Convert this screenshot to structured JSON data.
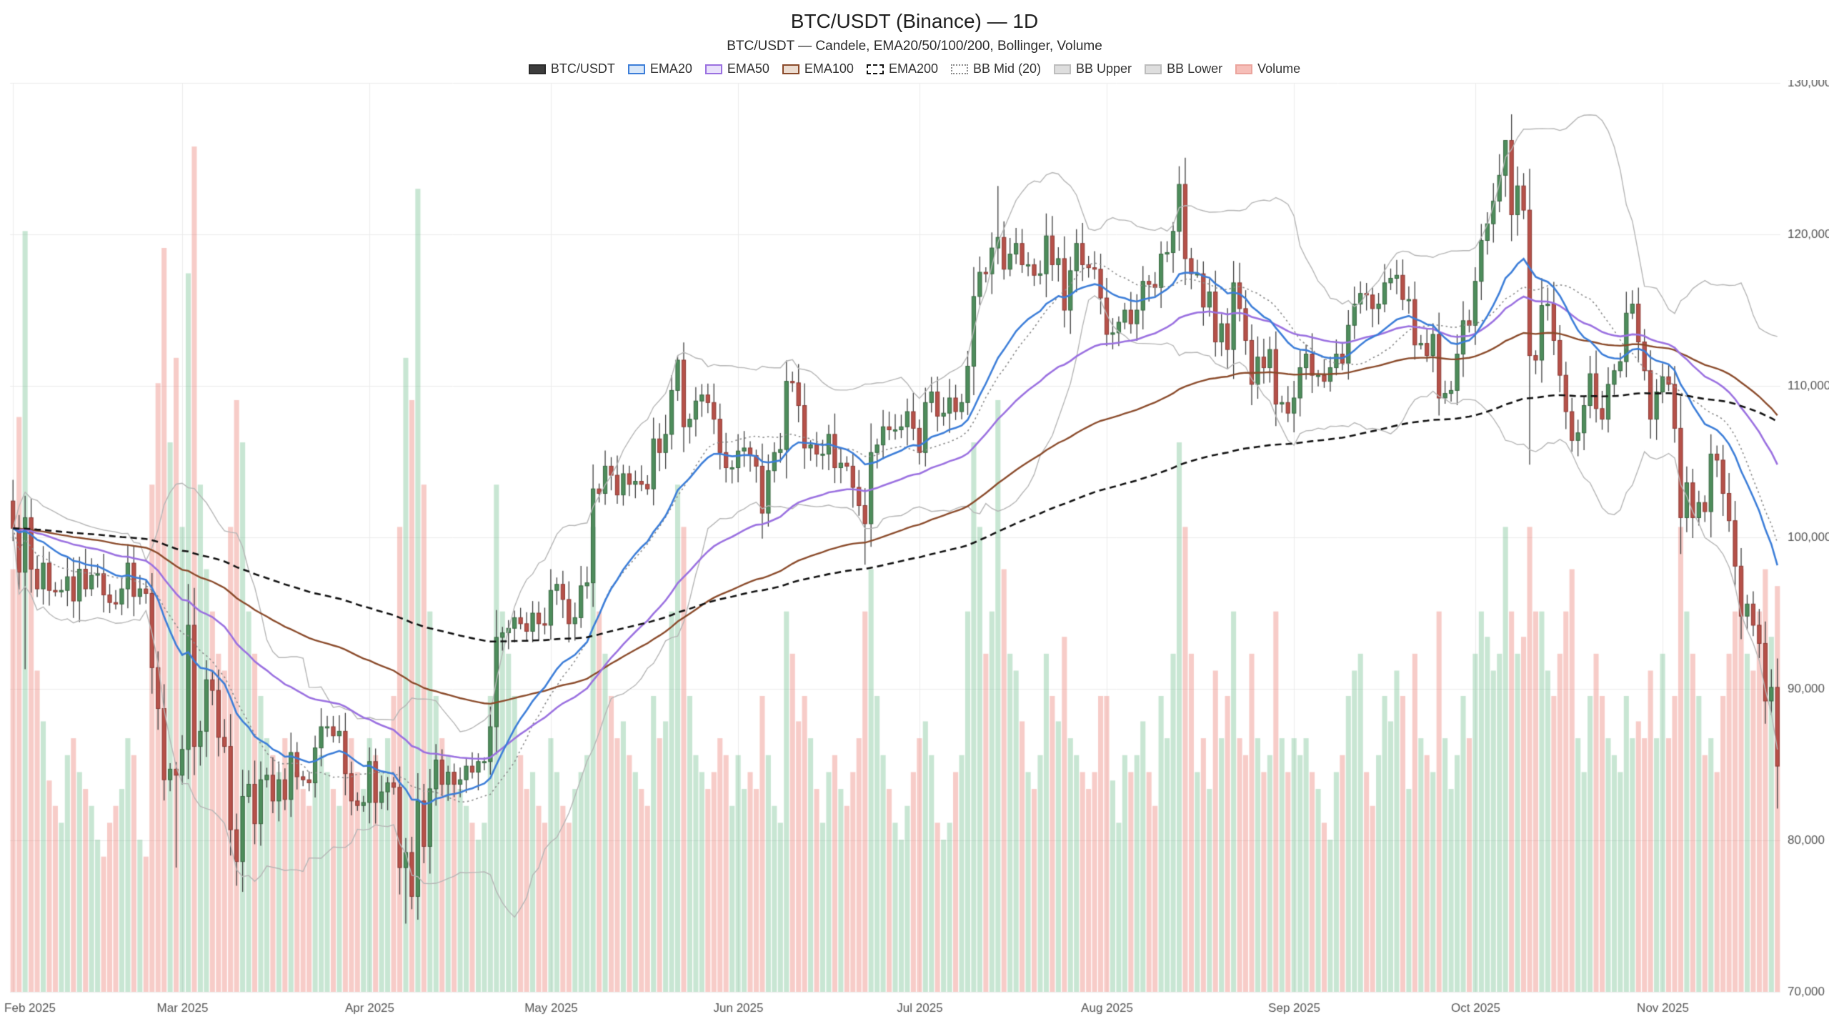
{
  "header": {
    "title": "BTC/USDT (Binance) — 1D",
    "subtitle": "BTC/USDT — Candele, EMA20/50/100/200, Bollinger, Volume"
  },
  "legend": {
    "items": [
      {
        "id": "btc-usdt",
        "label": "BTC/USDT",
        "fill": "#3c3c3c",
        "border": "#2a2a2a",
        "border_style": "solid"
      },
      {
        "id": "ema20",
        "label": "EMA20",
        "fill": "#d8e7f9",
        "border": "#3b7dd8",
        "border_style": "solid"
      },
      {
        "id": "ema50",
        "label": "EMA50",
        "fill": "#e9e1fb",
        "border": "#9a70e0",
        "border_style": "solid"
      },
      {
        "id": "ema100",
        "label": "EMA100",
        "fill": "#ecdcd0",
        "border": "#8a4a2a",
        "border_style": "solid"
      },
      {
        "id": "ema200",
        "label": "EMA200",
        "fill": "#ffffff",
        "border": "#111111",
        "border_style": "dashed"
      },
      {
        "id": "bb-mid",
        "label": "BB Mid (20)",
        "fill": "#ffffff",
        "border": "#8a8a8a",
        "border_style": "dotted"
      },
      {
        "id": "bb-upper",
        "label": "BB Upper",
        "fill": "#dedede",
        "border": "#bdbdbd",
        "border_style": "solid"
      },
      {
        "id": "bb-lower",
        "label": "BB Lower",
        "fill": "#dedede",
        "border": "#bdbdbd",
        "border_style": "solid"
      },
      {
        "id": "volume",
        "label": "Volume",
        "fill": "#f6beb8",
        "border": "#eba49d",
        "border_style": "solid"
      }
    ]
  },
  "style": {
    "background": "#ffffff",
    "grid_color": "#ebebeb",
    "tick_label_color": "#555555",
    "up_color": "#4e8d5c",
    "up_edge": "#36663f",
    "down_color": "#b65149",
    "down_edge": "#8c3a34",
    "wick_color": "#3c3c3c",
    "vol_up": "rgba(110,190,140,0.38)",
    "vol_down": "rgba(235,120,110,0.38)",
    "ema20": "#3b7dd8",
    "ema50": "#9a70e0",
    "ema100": "#8a4a2a",
    "ema200": "#111111",
    "bb_mid": "#8a8a8a",
    "bb_band": "#b5b5b5"
  },
  "chart_data": {
    "type": "candlestick+volume",
    "title": "BTC/USDT (Binance) — 1D",
    "symbol": "BTC/USDT",
    "exchange": "Binance",
    "timeframe": "1D",
    "x_start": "2025-02-01",
    "x_unit": "day",
    "ylim": [
      70000,
      130000
    ],
    "grid": true,
    "legend_position": "top",
    "overlays": [
      {
        "name": "EMA20",
        "period": 20
      },
      {
        "name": "EMA50",
        "period": 50
      },
      {
        "name": "EMA100",
        "period": 100
      },
      {
        "name": "EMA200",
        "period": 200
      },
      {
        "name": "Bollinger",
        "period": 20,
        "stdev": 2
      }
    ],
    "y_ticks": [
      {
        "value": 70000,
        "label": "70,000"
      },
      {
        "value": 80000,
        "label": "80,000"
      },
      {
        "value": 90000,
        "label": "90,000"
      },
      {
        "value": 100000,
        "label": "100,000"
      },
      {
        "value": 110000,
        "label": "110,000"
      },
      {
        "value": 120000,
        "label": "120,000"
      },
      {
        "value": 130000,
        "label": "130,000"
      }
    ],
    "x_ticks": [
      {
        "index": 0,
        "label": "Feb 2025"
      },
      {
        "index": 28,
        "label": "Mar 2025"
      },
      {
        "index": 59,
        "label": "Apr 2025"
      },
      {
        "index": 89,
        "label": "May 2025"
      },
      {
        "index": 120,
        "label": "Jun 2025"
      },
      {
        "index": 150,
        "label": "Jul 2025"
      },
      {
        "index": 181,
        "label": "Aug 2025"
      },
      {
        "index": 212,
        "label": "Sep 2025"
      },
      {
        "index": 242,
        "label": "Oct 2025"
      },
      {
        "index": 273,
        "label": "Nov 2025"
      }
    ],
    "first_open": 102400,
    "closes": [
      100600,
      97700,
      101300,
      97900,
      96600,
      98300,
      96500,
      96400,
      96500,
      97400,
      95800,
      97900,
      96600,
      97500,
      97600,
      96200,
      95700,
      95600,
      96600,
      98300,
      96100,
      96600,
      96300,
      91400,
      88700,
      84000,
      84700,
      84300,
      86000,
      94200,
      86200,
      87200,
      90600,
      89900,
      86800,
      86200,
      80700,
      78600,
      82900,
      83700,
      81100,
      84000,
      84300,
      82600,
      84000,
      82700,
      85800,
      84200,
      84000,
      83800,
      86100,
      87500,
      87500,
      86900,
      87200,
      84400,
      82600,
      82300,
      82500,
      85200,
      82500,
      83200,
      83800,
      83500,
      78200,
      79200,
      76300,
      82600,
      79600,
      83400,
      85300,
      83700,
      84500,
      83700,
      84000,
      84900,
      84500,
      85200,
      85200,
      87500,
      93400,
      93700,
      94000,
      94700,
      94300,
      93800,
      95000,
      94300,
      94200,
      96500,
      96900,
      95900,
      94300,
      94700,
      96800,
      97000,
      103200,
      102900,
      104700,
      104100,
      102800,
      104200,
      103500,
      103700,
      103500,
      103200,
      106500,
      105600,
      106800,
      109700,
      111700,
      107300,
      107800,
      109000,
      109400,
      108900,
      107800,
      105600,
      104600,
      104600,
      105700,
      105900,
      105400,
      104700,
      101600,
      104400,
      105600,
      105800,
      110300,
      110200,
      108700,
      105900,
      106100,
      105500,
      105500,
      106800,
      104600,
      104900,
      104700,
      103300,
      102100,
      100900,
      105600,
      106100,
      107300,
      107100,
      107100,
      107300,
      108300,
      107200,
      105600,
      108900,
      109600,
      108000,
      108200,
      109200,
      108300,
      108900,
      111300,
      115900,
      117500,
      117400,
      119100,
      119800,
      117700,
      118700,
      119400,
      118000,
      118000,
      117300,
      117400,
      119900,
      118000,
      118400,
      115000,
      117600,
      119400,
      118000,
      117800,
      117700,
      115800,
      113400,
      113500,
      114200,
      115000,
      114100,
      115000,
      116900,
      116700,
      116500,
      118700,
      118800,
      120200,
      123300,
      118400,
      117400,
      117400,
      115200,
      116200,
      112900,
      114100,
      112400,
      116800,
      115100,
      113000,
      110100,
      111900,
      111200,
      112400,
      108800,
      108900,
      108200,
      109200,
      111200,
      112100,
      110700,
      110700,
      110300,
      111200,
      112100,
      111500,
      114000,
      115400,
      116100,
      116000,
      115100,
      115400,
      116800,
      117100,
      117300,
      115700,
      115700,
      112700,
      112800,
      112000,
      113400,
      109200,
      109500,
      109700,
      112100,
      114300,
      114000,
      116900,
      119600,
      120700,
      122200,
      123900,
      126200,
      121300,
      123200,
      121600,
      112000,
      111700,
      115300,
      115400,
      113000,
      110700,
      108300,
      106400,
      106900,
      108700,
      110800,
      108500,
      107800,
      110100,
      111000,
      111600,
      114800,
      115400,
      112900,
      111000,
      107800,
      109600,
      110600,
      110100,
      107200,
      101300,
      103600,
      101300,
      102300,
      101700,
      105500,
      105100,
      102900,
      101100,
      98100,
      94800,
      95600,
      94200,
      93000,
      89200,
      90100,
      84900
    ],
    "volumes": [
      50,
      68,
      90,
      55,
      38,
      32,
      25,
      22,
      20,
      28,
      30,
      26,
      24,
      22,
      18,
      16,
      20,
      22,
      24,
      30,
      28,
      18,
      16,
      60,
      72,
      88,
      65,
      75,
      55,
      85,
      100,
      60,
      50,
      45,
      40,
      38,
      55,
      70,
      65,
      45,
      40,
      35,
      30,
      28,
      26,
      30,
      28,
      26,
      24,
      22,
      25,
      28,
      26,
      24,
      22,
      28,
      30,
      26,
      24,
      30,
      28,
      26,
      30,
      35,
      55,
      75,
      70,
      95,
      60,
      45,
      35,
      30,
      28,
      26,
      24,
      22,
      20,
      18,
      20,
      35,
      60,
      45,
      40,
      35,
      28,
      24,
      26,
      22,
      20,
      30,
      26,
      22,
      20,
      24,
      26,
      28,
      55,
      45,
      40,
      35,
      30,
      32,
      28,
      26,
      24,
      22,
      35,
      30,
      32,
      45,
      60,
      55,
      35,
      28,
      26,
      24,
      26,
      30,
      28,
      22,
      28,
      24,
      26,
      24,
      35,
      28,
      22,
      20,
      45,
      40,
      32,
      35,
      30,
      24,
      20,
      26,
      28,
      24,
      22,
      26,
      30,
      45,
      50,
      35,
      28,
      24,
      20,
      18,
      22,
      26,
      30,
      32,
      28,
      20,
      18,
      20,
      26,
      28,
      45,
      65,
      55,
      40,
      45,
      70,
      50,
      40,
      38,
      32,
      26,
      24,
      28,
      40,
      35,
      32,
      42,
      30,
      28,
      26,
      24,
      26,
      35,
      35,
      25,
      20,
      28,
      26,
      28,
      32,
      26,
      22,
      35,
      30,
      40,
      65,
      55,
      40,
      26,
      30,
      24,
      38,
      30,
      35,
      45,
      30,
      28,
      40,
      30,
      26,
      28,
      45,
      30,
      26,
      30,
      28,
      30,
      26,
      24,
      20,
      18,
      26,
      28,
      35,
      38,
      40,
      26,
      22,
      28,
      35,
      32,
      38,
      35,
      24,
      40,
      30,
      28,
      26,
      45,
      30,
      24,
      28,
      35,
      30,
      40,
      45,
      42,
      38,
      40,
      55,
      45,
      40,
      42,
      55,
      45,
      45,
      38,
      35,
      40,
      45,
      50,
      30,
      26,
      35,
      40,
      35,
      30,
      28,
      26,
      35,
      30,
      32,
      30,
      38,
      30,
      40,
      30,
      35,
      55,
      45,
      40,
      35,
      28,
      30,
      26,
      35,
      40,
      45,
      50,
      40,
      38,
      45,
      50,
      42,
      48
    ],
    "wick_overrides": {
      "2": {
        "low": 91300
      },
      "27": {
        "low": 78200
      },
      "37": {
        "low": 77000
      },
      "38": {
        "low": 76600
      },
      "65": {
        "low": 74500
      },
      "110": {
        "high": 111980
      },
      "141": {
        "low": 98200
      },
      "163": {
        "high": 123200
      },
      "193": {
        "high": 124500
      },
      "247": {
        "high": 126200
      },
      "251": {
        "low": 104800
      },
      "276": {
        "low": 98900
      },
      "292": {
        "low": 82100
      }
    }
  }
}
